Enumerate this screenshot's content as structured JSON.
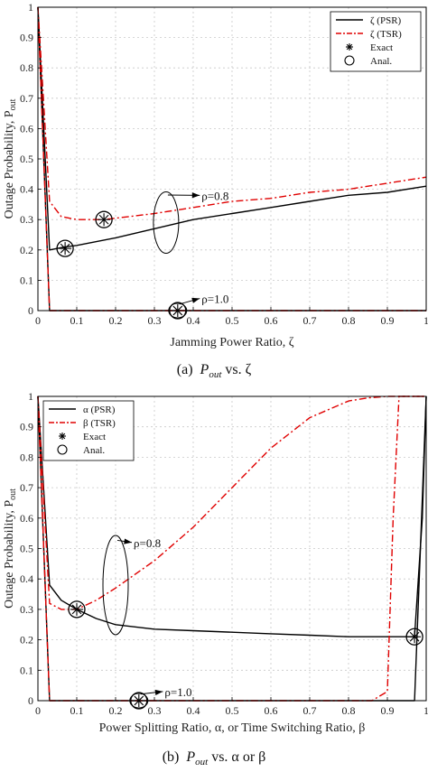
{
  "chart_data": [
    {
      "type": "line",
      "caption_prefix": "(a)",
      "caption_math": "P",
      "caption_sub": "out",
      "caption_rest": " vs. ζ",
      "xlabel": "Jamming Power Ratio, ζ",
      "ylabel": "Outage Probability, P",
      "ylabel_sub": "out",
      "xlim": [
        0,
        1
      ],
      "ylim": [
        0,
        1
      ],
      "grid": true,
      "legend_position": "top-right",
      "x_ticks": [
        "0",
        "0.1",
        "0.2",
        "0.3",
        "0.4",
        "0.5",
        "0.6",
        "0.7",
        "0.8",
        "0.9",
        "1"
      ],
      "y_ticks": [
        "0",
        "0.1",
        "0.2",
        "0.3",
        "0.4",
        "0.5",
        "0.6",
        "0.7",
        "0.8",
        "0.9",
        "1"
      ],
      "legend": [
        "ζ (PSR)",
        "ζ (TSR)",
        "Exact",
        "Anal."
      ],
      "series": [
        {
          "name": "ζ (PSR)",
          "style": "solid",
          "color": "#000000",
          "x": [
            0,
            0.03,
            0.07,
            0.1,
            0.2,
            0.3,
            0.4,
            0.5,
            0.6,
            0.7,
            0.8,
            0.9,
            1.0
          ],
          "y": [
            1.0,
            0.2,
            0.21,
            0.215,
            0.24,
            0.27,
            0.3,
            0.32,
            0.34,
            0.36,
            0.38,
            0.39,
            0.41
          ]
        },
        {
          "name": "ζ (TSR)",
          "style": "dashdot",
          "color": "#e00000",
          "x": [
            0,
            0.03,
            0.06,
            0.1,
            0.17,
            0.3,
            0.4,
            0.5,
            0.6,
            0.7,
            0.8,
            0.9,
            1.0
          ],
          "y": [
            1.0,
            0.36,
            0.31,
            0.3,
            0.3,
            0.32,
            0.34,
            0.36,
            0.37,
            0.39,
            0.4,
            0.42,
            0.44
          ]
        },
        {
          "name": "ζ (PSR) ρ=1.0",
          "style": "solid",
          "color": "#000000",
          "x": [
            0,
            0.03,
            1.0
          ],
          "y": [
            1.0,
            0.0,
            0.0
          ]
        },
        {
          "name": "ζ (TSR) ρ=1.0",
          "style": "dashdot",
          "color": "#e00000",
          "x": [
            0,
            0.03,
            1.0
          ],
          "y": [
            1.0,
            0.0,
            0.0
          ]
        }
      ],
      "markers": [
        {
          "x": 0.07,
          "y": 0.205
        },
        {
          "x": 0.17,
          "y": 0.3
        },
        {
          "x": 0.36,
          "y": 0.0
        }
      ],
      "annotations": [
        {
          "text": "ρ=0.8",
          "x": 0.375,
          "y": 0.38,
          "ellipse_x": 0.33,
          "ellipse_y": 0.29,
          "arrow_to_x": 0.375
        },
        {
          "text": "ρ=1.0",
          "x": 0.375,
          "y": 0.04,
          "ellipse_x": 0.36,
          "ellipse_y": 0.0,
          "arrow_to_x": 0.375
        }
      ]
    },
    {
      "type": "line",
      "caption_prefix": "(b)",
      "caption_math": "P",
      "caption_sub": "out",
      "caption_rest": " vs. α or β",
      "xlabel": "Power Splitting Ratio, α, or Time Switching Ratio, β",
      "ylabel": "Outage Probability, P",
      "ylabel_sub": "out",
      "xlim": [
        0,
        1
      ],
      "ylim": [
        0,
        1
      ],
      "grid": true,
      "legend_position": "top-left",
      "x_ticks": [
        "0",
        "0.1",
        "0.2",
        "0.3",
        "0.4",
        "0.5",
        "0.6",
        "0.7",
        "0.8",
        "0.9",
        "1"
      ],
      "y_ticks": [
        "0",
        "0.1",
        "0.2",
        "0.3",
        "0.4",
        "0.5",
        "0.6",
        "0.7",
        "0.8",
        "0.9",
        "1"
      ],
      "legend": [
        "α (PSR)",
        "β (TSR)",
        "Exact",
        "Anal."
      ],
      "series": [
        {
          "name": "α (PSR)",
          "style": "solid",
          "color": "#000000",
          "x": [
            0,
            0.03,
            0.06,
            0.1,
            0.15,
            0.2,
            0.3,
            0.4,
            0.5,
            0.6,
            0.7,
            0.8,
            0.9,
            0.97,
            0.99,
            1.0
          ],
          "y": [
            1.0,
            0.38,
            0.33,
            0.3,
            0.27,
            0.25,
            0.235,
            0.23,
            0.225,
            0.22,
            0.215,
            0.21,
            0.21,
            0.21,
            0.6,
            1.0
          ]
        },
        {
          "name": "β (TSR)",
          "style": "dashdot",
          "color": "#e00000",
          "x": [
            0,
            0.03,
            0.06,
            0.1,
            0.15,
            0.2,
            0.3,
            0.4,
            0.5,
            0.6,
            0.7,
            0.8,
            0.85,
            0.9,
            0.95,
            1.0
          ],
          "y": [
            1.0,
            0.32,
            0.3,
            0.3,
            0.33,
            0.37,
            0.46,
            0.57,
            0.7,
            0.83,
            0.93,
            0.985,
            0.995,
            1.0,
            1.0,
            1.0
          ]
        },
        {
          "name": "α (PSR) ρ=1.0",
          "style": "solid",
          "color": "#000000",
          "x": [
            0,
            0.03,
            0.97,
            0.985,
            1.0
          ],
          "y": [
            1.0,
            0.0,
            0.0,
            0.5,
            1.0
          ]
        },
        {
          "name": "β (TSR) ρ=1.0",
          "style": "dashdot",
          "color": "#e00000",
          "x": [
            0,
            0.03,
            0.86,
            0.9,
            0.915,
            0.93,
            1.0
          ],
          "y": [
            1.0,
            0.0,
            0.0,
            0.03,
            0.6,
            1.0,
            1.0
          ]
        }
      ],
      "markers": [
        {
          "x": 0.1,
          "y": 0.3
        },
        {
          "x": 0.97,
          "y": 0.21
        },
        {
          "x": 0.26,
          "y": 0.0
        }
      ],
      "annotations": [
        {
          "text": "ρ=0.8",
          "x": 0.2,
          "y": 0.52,
          "ellipse_x": 0.2,
          "ellipse_y": 0.38,
          "arrow_to_x": 0.2
        },
        {
          "text": "ρ=1.0",
          "x": 0.28,
          "y": 0.03,
          "ellipse_x": 0.26,
          "ellipse_y": 0.0,
          "arrow_to_x": 0.28
        }
      ]
    }
  ]
}
